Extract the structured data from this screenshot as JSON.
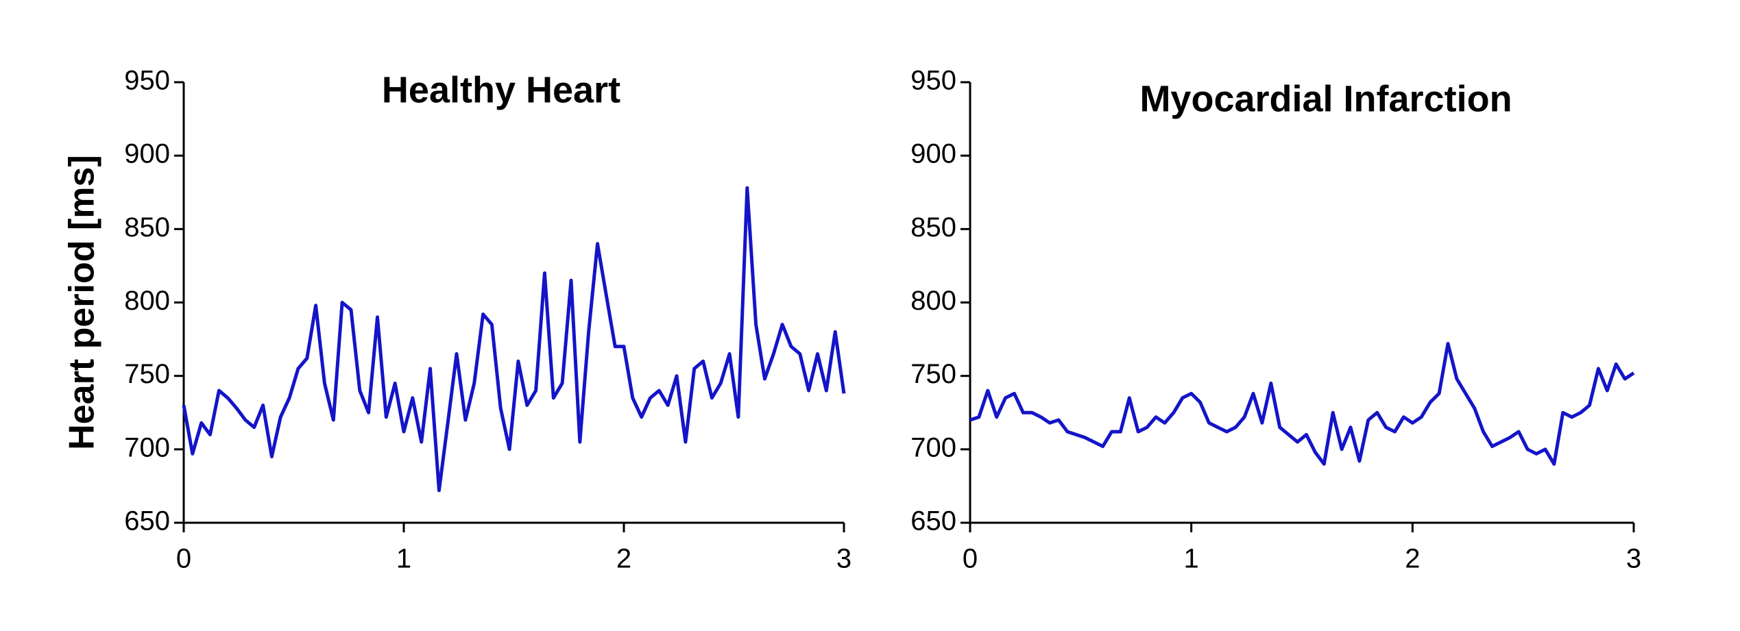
{
  "chart_data": [
    {
      "type": "line",
      "title": "Healthy Heart",
      "y_label": "Heart period [ms]",
      "x": [
        0,
        0.04,
        0.08,
        0.12,
        0.16,
        0.2,
        0.24,
        0.28,
        0.32,
        0.36,
        0.4,
        0.44,
        0.48,
        0.52,
        0.56,
        0.6,
        0.64,
        0.68,
        0.72,
        0.76,
        0.8,
        0.84,
        0.88,
        0.92,
        0.96,
        1,
        1.04,
        1.08,
        1.12,
        1.16,
        1.2,
        1.24,
        1.28,
        1.32,
        1.36,
        1.4,
        1.44,
        1.48,
        1.52,
        1.56,
        1.6,
        1.64,
        1.68,
        1.72,
        1.76,
        1.8,
        1.84,
        1.88,
        1.92,
        1.96,
        2,
        2.04,
        2.08,
        2.12,
        2.16,
        2.2,
        2.24,
        2.28,
        2.32,
        2.36,
        2.4,
        2.44,
        2.48,
        2.52,
        2.56,
        2.6,
        2.64,
        2.68,
        2.72,
        2.76,
        2.8,
        2.84,
        2.88,
        2.92,
        2.96,
        3
      ],
      "values": [
        730,
        697,
        718,
        710,
        740,
        735,
        728,
        720,
        715,
        730,
        695,
        722,
        735,
        755,
        762,
        798,
        745,
        720,
        800,
        795,
        740,
        725,
        790,
        722,
        745,
        712,
        735,
        705,
        755,
        672,
        718,
        765,
        720,
        745,
        792,
        785,
        728,
        700,
        760,
        730,
        740,
        820,
        735,
        745,
        815,
        705,
        780,
        840,
        805,
        770,
        770,
        735,
        722,
        735,
        740,
        730,
        750,
        705,
        755,
        760,
        735,
        745,
        765,
        722,
        878,
        785,
        748,
        765,
        785,
        770,
        765,
        740,
        765,
        740,
        780,
        738
      ],
      "color": "#1414c8",
      "xlim": [
        0,
        3
      ],
      "xticks": [
        0,
        1,
        2,
        3
      ],
      "ylim": [
        650,
        950
      ],
      "yticks": [
        650,
        700,
        750,
        800,
        850,
        900,
        950
      ]
    },
    {
      "type": "line",
      "title": "Myocardial Infarction",
      "x": [
        0,
        0.04,
        0.08,
        0.12,
        0.16,
        0.2,
        0.24,
        0.28,
        0.32,
        0.36,
        0.4,
        0.44,
        0.48,
        0.52,
        0.56,
        0.6,
        0.64,
        0.68,
        0.72,
        0.76,
        0.8,
        0.84,
        0.88,
        0.92,
        0.96,
        1,
        1.04,
        1.08,
        1.12,
        1.16,
        1.2,
        1.24,
        1.28,
        1.32,
        1.36,
        1.4,
        1.44,
        1.48,
        1.52,
        1.56,
        1.6,
        1.64,
        1.68,
        1.72,
        1.76,
        1.8,
        1.84,
        1.88,
        1.92,
        1.96,
        2,
        2.04,
        2.08,
        2.12,
        2.16,
        2.2,
        2.24,
        2.28,
        2.32,
        2.36,
        2.4,
        2.44,
        2.48,
        2.52,
        2.56,
        2.6,
        2.64,
        2.68,
        2.72,
        2.76,
        2.8,
        2.84,
        2.88,
        2.92,
        2.96,
        3
      ],
      "values": [
        720,
        722,
        740,
        722,
        735,
        738,
        725,
        725,
        722,
        718,
        720,
        712,
        710,
        708,
        705,
        702,
        712,
        712,
        735,
        712,
        715,
        722,
        718,
        725,
        735,
        738,
        732,
        718,
        715,
        712,
        715,
        722,
        738,
        718,
        745,
        715,
        710,
        705,
        710,
        698,
        690,
        725,
        700,
        715,
        692,
        720,
        725,
        715,
        712,
        722,
        718,
        722,
        732,
        738,
        772,
        748,
        738,
        728,
        712,
        702,
        705,
        708,
        712,
        700,
        697,
        700,
        690,
        725,
        722,
        725,
        730,
        755,
        740,
        758,
        748,
        752
      ],
      "color": "#1414c8",
      "xlim": [
        0,
        3
      ],
      "xticks": [
        0,
        1,
        2,
        3
      ],
      "ylim": [
        650,
        950
      ],
      "yticks": [
        650,
        700,
        750,
        800,
        850,
        900,
        950
      ]
    }
  ]
}
